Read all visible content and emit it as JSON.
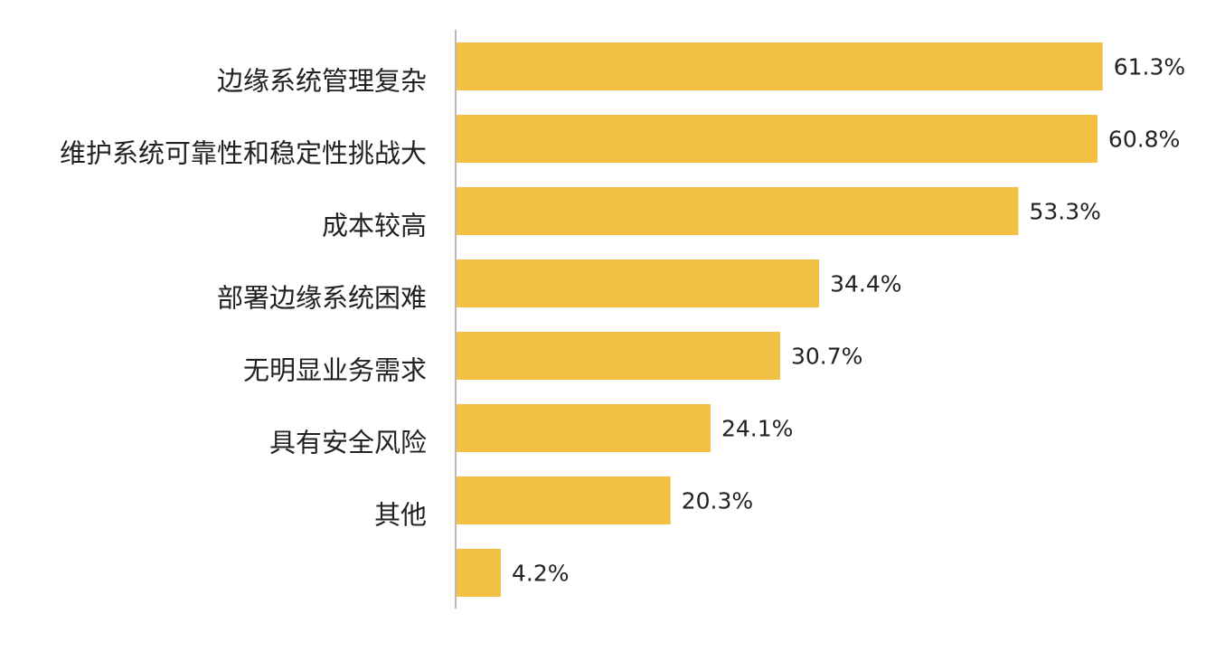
{
  "chart_data": {
    "type": "bar",
    "orientation": "horizontal",
    "categories": [
      "边缘系统管理复杂",
      "维护系统可靠性和稳定性挑战大",
      "成本较高",
      "部署边缘系统困难",
      "无明显业务需求",
      "具有安全风险",
      "其他",
      null
    ],
    "values": [
      61.3,
      60.8,
      53.3,
      34.4,
      30.7,
      24.1,
      20.3,
      4.2
    ],
    "value_labels": [
      "61.3%",
      "60.8%",
      "53.3%",
      "34.4%",
      "30.7%",
      "24.1%",
      "20.3%",
      "4.2%"
    ],
    "color": "#f2c144"
  }
}
